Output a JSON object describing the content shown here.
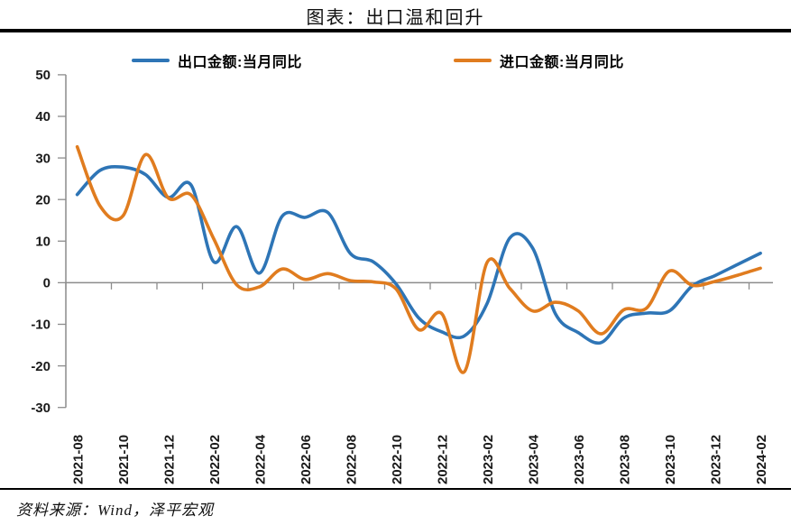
{
  "title": "图表：出口温和回升",
  "legend": [
    {
      "label": "出口金额:当月同比",
      "color": "#2E75B6"
    },
    {
      "label": "进口金额:当月同比",
      "color": "#E07C1F"
    }
  ],
  "source_note": "资料来源：Wind，泽平宏观",
  "colors": {
    "export_line": "#2E75B6",
    "import_line": "#E07C1F",
    "axis": "#8C8C8C",
    "rule": "#000000"
  },
  "chart_data": {
    "type": "line",
    "smooth": true,
    "grid": false,
    "legend_position": "top",
    "ylim": [
      -30,
      50
    ],
    "yticks": [
      50,
      40,
      30,
      20,
      10,
      0,
      -10,
      -20,
      -30
    ],
    "x": [
      "2021-08",
      "2021-09",
      "2021-10",
      "2021-11",
      "2021-12",
      "2022-01",
      "2022-02",
      "2022-03",
      "2022-04",
      "2022-05",
      "2022-06",
      "2022-07",
      "2022-08",
      "2022-09",
      "2022-10",
      "2022-11",
      "2022-12",
      "2023-01",
      "2023-02",
      "2023-03",
      "2023-04",
      "2023-05",
      "2023-06",
      "2023-07",
      "2023-08",
      "2023-09",
      "2023-10",
      "2023-11",
      "2023-12",
      "2024-01",
      "2024-02"
    ],
    "x_tick_labels": [
      "2021-08",
      "2021-10",
      "2021-12",
      "2022-02",
      "2022-04",
      "2022-06",
      "2022-08",
      "2022-10",
      "2022-12",
      "2023-02",
      "2023-04",
      "2023-06",
      "2023-08",
      "2023-10",
      "2023-12",
      "2024-02"
    ],
    "series": [
      {
        "name": "出口金额:当月同比",
        "color": "#2E75B6",
        "values": [
          21.2,
          27.0,
          27.8,
          26.0,
          20.5,
          23.5,
          5.0,
          13.5,
          2.3,
          16.0,
          15.7,
          16.9,
          7.0,
          5.0,
          -0.3,
          -8.5,
          -11.8,
          -12.8,
          -5.0,
          10.8,
          8.3,
          -7.5,
          -12.0,
          -14.4,
          -8.5,
          -7.3,
          -6.8,
          -0.8,
          1.7,
          4.4,
          7.1
        ]
      },
      {
        "name": "进口金额:当月同比",
        "color": "#E07C1F",
        "values": [
          32.7,
          18.5,
          16.0,
          30.8,
          20.4,
          21.1,
          10.5,
          -0.5,
          -1.0,
          3.3,
          0.8,
          2.2,
          0.5,
          0.2,
          -1.5,
          -11.3,
          -7.4,
          -21.4,
          4.9,
          -1.4,
          -6.8,
          -4.7,
          -6.8,
          -12.3,
          -6.5,
          -6.1,
          2.8,
          -0.6,
          0.3,
          1.8,
          3.5
        ]
      }
    ]
  }
}
